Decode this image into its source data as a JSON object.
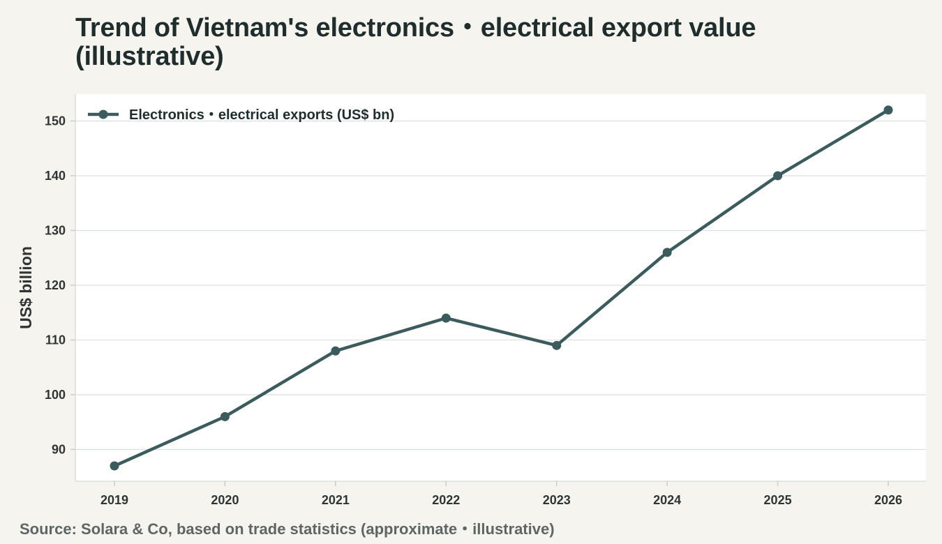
{
  "page": {
    "title": "Trend of Vietnam's electronics・electrical export value (illustrative)",
    "source": "Source: Solara & Co, based on trade statistics (approximate・illustrative)"
  },
  "colors": {
    "background": "#f5f4ef",
    "plot_background": "#ffffff",
    "line": "#3b5b5c",
    "grid": "#dcdfdf"
  },
  "chart_data": {
    "type": "line",
    "title": "Trend of Vietnam's electronics・electrical export value (illustrative)",
    "xlabel": "",
    "ylabel": "US$ billion",
    "categories": [
      "2019",
      "2020",
      "2021",
      "2022",
      "2023",
      "2024",
      "2025",
      "2026"
    ],
    "series": [
      {
        "name": "Electronics・electrical exports (US$ bn)",
        "values": [
          87,
          96,
          108,
          114,
          109,
          126,
          140,
          152
        ]
      }
    ],
    "ylim": [
      84.2,
      154.9
    ],
    "yticks": [
      90,
      100,
      110,
      120,
      130,
      140,
      150
    ],
    "grid": true,
    "legend_position": "top-left",
    "markers": true
  }
}
